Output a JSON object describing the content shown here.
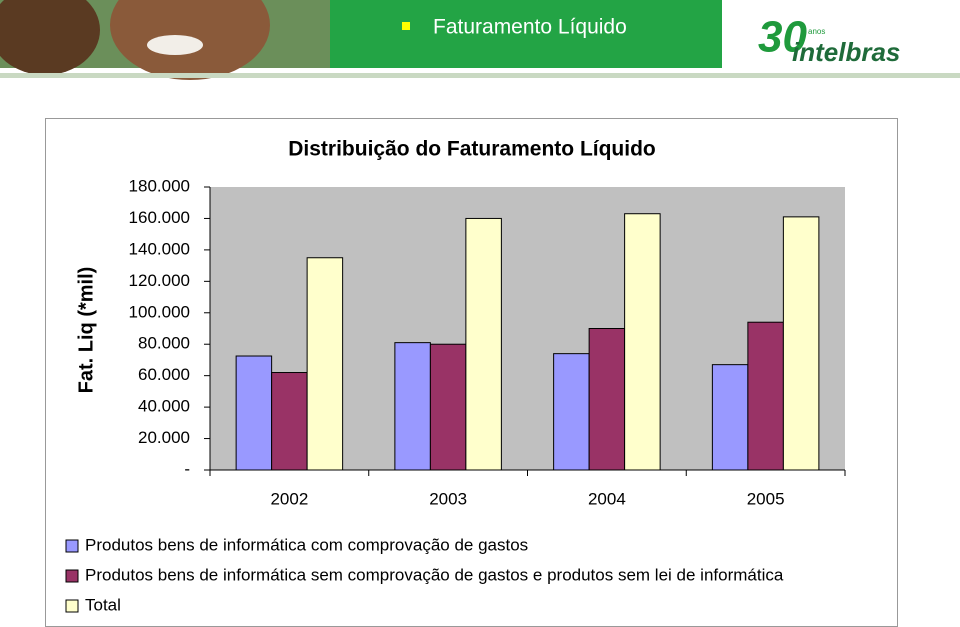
{
  "slide_title": "Faturamento Líquido",
  "logo": {
    "number": "30",
    "caption": "anos",
    "name": "intelbras"
  },
  "chart_data": {
    "type": "bar",
    "title": "Distribuição do Faturamento Líquido",
    "y_label": "Fat. Liq (*mil)",
    "categories": [
      "2002",
      "2003",
      "2004",
      "2005"
    ],
    "series": [
      {
        "name": "Produtos bens de informática com comprovação de gastos",
        "color": "#9999ff",
        "values": [
          72500,
          81000,
          74000,
          67000
        ]
      },
      {
        "name": "Produtos bens de informática sem comprovação de gastos e produtos sem lei de informática",
        "color": "#993366",
        "values": [
          62000,
          80000,
          90000,
          94000
        ]
      },
      {
        "name": "Total",
        "color": "#ffffcc",
        "values": [
          135000,
          160000,
          163000,
          161000
        ]
      }
    ],
    "ylim": [
      0,
      180000
    ],
    "yticks": [
      {
        "value": 0,
        "label": "-"
      },
      {
        "value": 20000,
        "label": "20.000"
      },
      {
        "value": 40000,
        "label": "40.000"
      },
      {
        "value": 60000,
        "label": "60.000"
      },
      {
        "value": 80000,
        "label": "80.000"
      },
      {
        "value": 100000,
        "label": "100.000"
      },
      {
        "value": 120000,
        "label": "120.000"
      },
      {
        "value": 140000,
        "label": "140.000"
      },
      {
        "value": 160000,
        "label": "160.000"
      },
      {
        "value": 180000,
        "label": "180.000"
      }
    ],
    "grid": false,
    "legend": "bottom",
    "plot_background": "#c0c0c0"
  }
}
